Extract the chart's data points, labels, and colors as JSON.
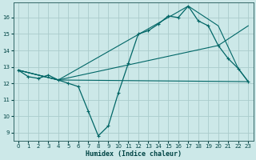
{
  "xlabel": "Humidex (Indice chaleur)",
  "background_color": "#cce8e8",
  "grid_color": "#aacccc",
  "line_color": "#006666",
  "xlim": [
    -0.5,
    23.5
  ],
  "ylim": [
    8.5,
    16.9
  ],
  "xticks": [
    0,
    1,
    2,
    3,
    4,
    5,
    6,
    7,
    8,
    9,
    10,
    11,
    12,
    13,
    14,
    15,
    16,
    17,
    18,
    19,
    20,
    21,
    22,
    23
  ],
  "yticks": [
    9,
    10,
    11,
    12,
    13,
    14,
    15,
    16
  ],
  "line1_x": [
    0,
    1,
    2,
    3,
    4,
    5,
    6,
    7,
    8,
    9,
    10,
    11,
    12,
    13,
    14,
    15,
    16,
    17,
    18,
    19,
    20,
    21,
    22,
    23
  ],
  "line1_y": [
    12.8,
    12.4,
    12.3,
    12.5,
    12.2,
    12.0,
    11.8,
    10.3,
    8.8,
    9.4,
    11.4,
    13.2,
    15.0,
    15.2,
    15.6,
    16.1,
    16.0,
    16.7,
    15.8,
    15.5,
    14.3,
    13.5,
    12.9,
    12.1
  ],
  "line2_x": [
    0,
    4,
    23
  ],
  "line2_y": [
    12.8,
    12.2,
    12.1
  ],
  "line3_x": [
    0,
    4,
    20,
    23
  ],
  "line3_y": [
    12.8,
    12.2,
    14.3,
    15.5
  ],
  "line4_x": [
    0,
    4,
    17,
    20,
    22,
    23
  ],
  "line4_y": [
    12.8,
    12.2,
    16.7,
    15.5,
    12.9,
    12.1
  ]
}
